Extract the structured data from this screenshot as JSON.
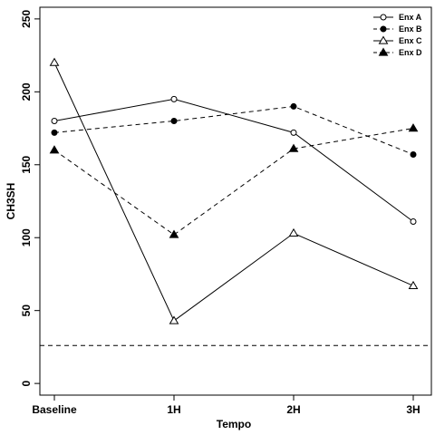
{
  "chart_data": {
    "type": "line",
    "title": "",
    "xlabel": "Tempo",
    "ylabel": "CH3SH",
    "categories": [
      "Baseline",
      "1H",
      "2H",
      "3H"
    ],
    "yticks": [
      0,
      50,
      100,
      150,
      200,
      250
    ],
    "ylim": [
      -8,
      258
    ],
    "grid": false,
    "legend_position": "top-right",
    "series": [
      {
        "name": "Enx A",
        "values": [
          180,
          195,
          172,
          111
        ],
        "marker": "open-circle",
        "line": "solid"
      },
      {
        "name": "Enx B",
        "values": [
          172,
          180,
          190,
          157
        ],
        "marker": "filled-circle",
        "line": "dashed"
      },
      {
        "name": "Enx C",
        "values": [
          220,
          43,
          103,
          67
        ],
        "marker": "open-triangle",
        "line": "solid"
      },
      {
        "name": "Enx D",
        "values": [
          160,
          102,
          161,
          175
        ],
        "marker": "filled-triangle",
        "line": "dashed"
      }
    ],
    "reference_lines": [
      {
        "value": 26,
        "line": "dashed"
      }
    ]
  }
}
